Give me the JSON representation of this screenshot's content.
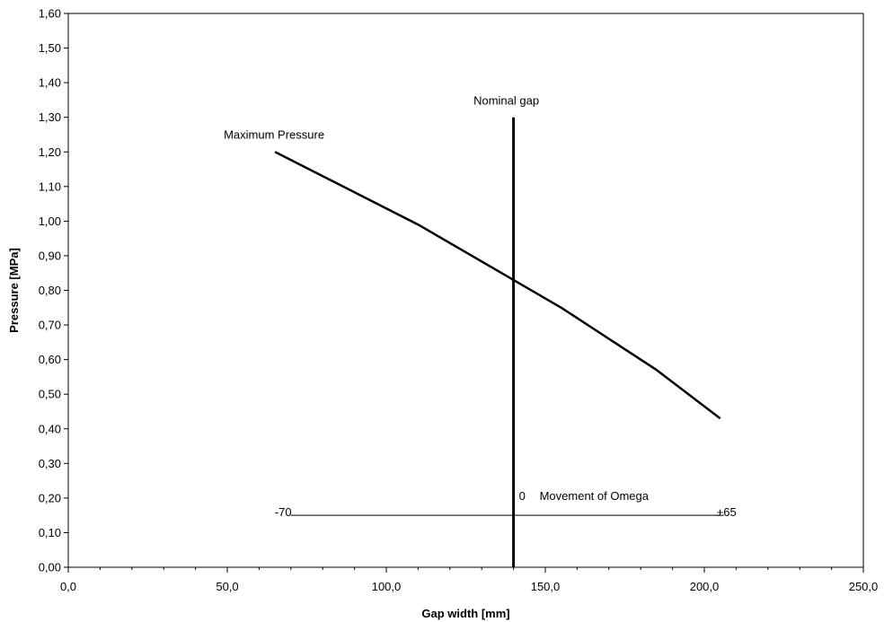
{
  "chart_data": {
    "type": "line",
    "xlabel": "Gap width [mm]",
    "ylabel": "Pressure [MPa]",
    "xlim": [
      0,
      250
    ],
    "ylim": [
      0,
      1.6
    ],
    "x_tick_values": [
      0,
      50,
      100,
      150,
      200,
      250
    ],
    "x_tick_labels": [
      "0,0",
      "50,0",
      "100,0",
      "150,0",
      "200,0",
      "250,0"
    ],
    "y_tick_values": [
      0,
      0.1,
      0.2,
      0.3,
      0.4,
      0.5,
      0.6,
      0.7,
      0.8,
      0.9,
      1.0,
      1.1,
      1.2,
      1.3,
      1.4,
      1.5,
      1.6
    ],
    "y_tick_labels": [
      "0,00",
      "0,10",
      "0,20",
      "0,30",
      "0,40",
      "0,50",
      "0,60",
      "0,70",
      "0,80",
      "0,90",
      "1,00",
      "1,10",
      "1,20",
      "1,30",
      "1,40",
      "1,50",
      "1,60"
    ],
    "grid": false,
    "legend": "none",
    "series": [
      {
        "name": "Maximum Pressure",
        "x": [
          65,
          80,
          95,
          110,
          125,
          140,
          155,
          170,
          185,
          195,
          205
        ],
        "y": [
          1.2,
          1.13,
          1.06,
          0.99,
          0.91,
          0.83,
          0.75,
          0.66,
          0.57,
          0.5,
          0.43
        ],
        "color": "#000000"
      }
    ],
    "reference_lines": [
      {
        "orientation": "vertical",
        "x": 140,
        "y_from": 0,
        "y_to": 1.3,
        "label": "Nominal gap"
      },
      {
        "orientation": "horizontal",
        "y": 0.15,
        "x_from": 70,
        "x_to": 205,
        "left_label": "-70",
        "right_label": "+65",
        "zero_label": "0",
        "label": "Movement of Omega"
      }
    ]
  }
}
